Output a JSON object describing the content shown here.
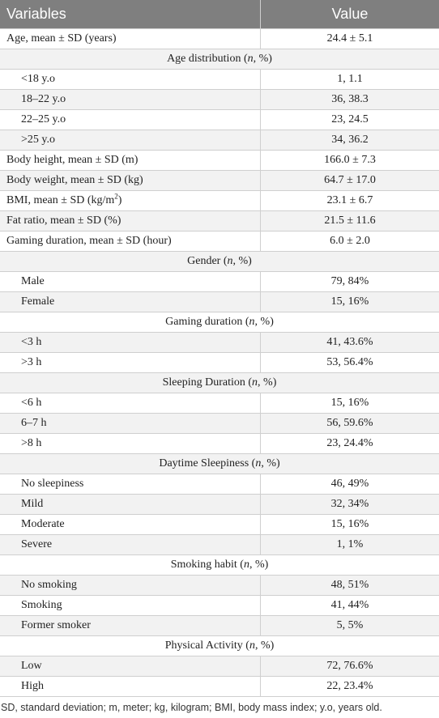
{
  "table": {
    "header": [
      "Variables",
      "Value"
    ],
    "rows": [
      {
        "label": "Age, mean ± SD (years)",
        "value": "24.4 ± 5.1"
      },
      {
        "label": "Age distribution (n, %)",
        "items": [
          {
            "label": "<18 y.o",
            "value": "1, 1.1"
          },
          {
            "label": "18–22 y.o",
            "value": "36, 38.3"
          },
          {
            "label": "22–25 y.o",
            "value": "23, 24.5"
          },
          {
            "label": ">25 y.o",
            "value": "34, 36.2"
          }
        ]
      },
      {
        "label": "Body height, mean ± SD (m)",
        "value": "166.0 ± 7.3"
      },
      {
        "label": "Body weight, mean ± SD (kg)",
        "value": "64.7 ± 17.0"
      },
      {
        "label": "BMI, mean ± SD (kg/m2)",
        "value": "23.1 ± 6.7"
      },
      {
        "label": "Fat ratio, mean ± SD (%)",
        "value": "21.5 ± 11.6"
      },
      {
        "label": "Gaming duration, mean ± SD (hour)",
        "value": "6.0 ± 2.0"
      },
      {
        "label": "Gender (n, %)",
        "items": [
          {
            "label": "Male",
            "value": "79, 84%"
          },
          {
            "label": "Female",
            "value": "15, 16%"
          }
        ]
      },
      {
        "label": "Gaming duration (n, %)",
        "items": [
          {
            "label": "<3 h",
            "value": "41, 43.6%"
          },
          {
            "label": ">3 h",
            "value": "53, 56.4%"
          }
        ]
      },
      {
        "label": "Sleeping Duration (n, %)",
        "items": [
          {
            "label": "<6 h",
            "value": "15, 16%"
          },
          {
            "label": "6–7 h",
            "value": "56, 59.6%"
          },
          {
            "label": ">8 h",
            "value": "23, 24.4%"
          }
        ]
      },
      {
        "label": "Daytime Sleepiness (n, %)",
        "items": [
          {
            "label": "No sleepiness",
            "value": "46, 49%"
          },
          {
            "label": "Mild",
            "value": "32, 34%"
          },
          {
            "label": "Moderate",
            "value": "15, 16%"
          },
          {
            "label": "Severe",
            "value": "1, 1%"
          }
        ]
      },
      {
        "label": "Smoking habit (n, %)",
        "items": [
          {
            "label": "No smoking",
            "value": "48, 51%"
          },
          {
            "label": "Smoking",
            "value": "41, 44%"
          },
          {
            "label": "Former smoker",
            "value": "5, 5%"
          }
        ]
      },
      {
        "label": "Physical Activity (n, %)",
        "items": [
          {
            "label": "Low",
            "value": "72, 76.6%"
          },
          {
            "label": "High",
            "value": "22, 23.4%"
          }
        ]
      }
    ],
    "footnote": "SD, standard deviation; m, meter; kg, kilogram; BMI, body mass index; y.o, years old."
  }
}
